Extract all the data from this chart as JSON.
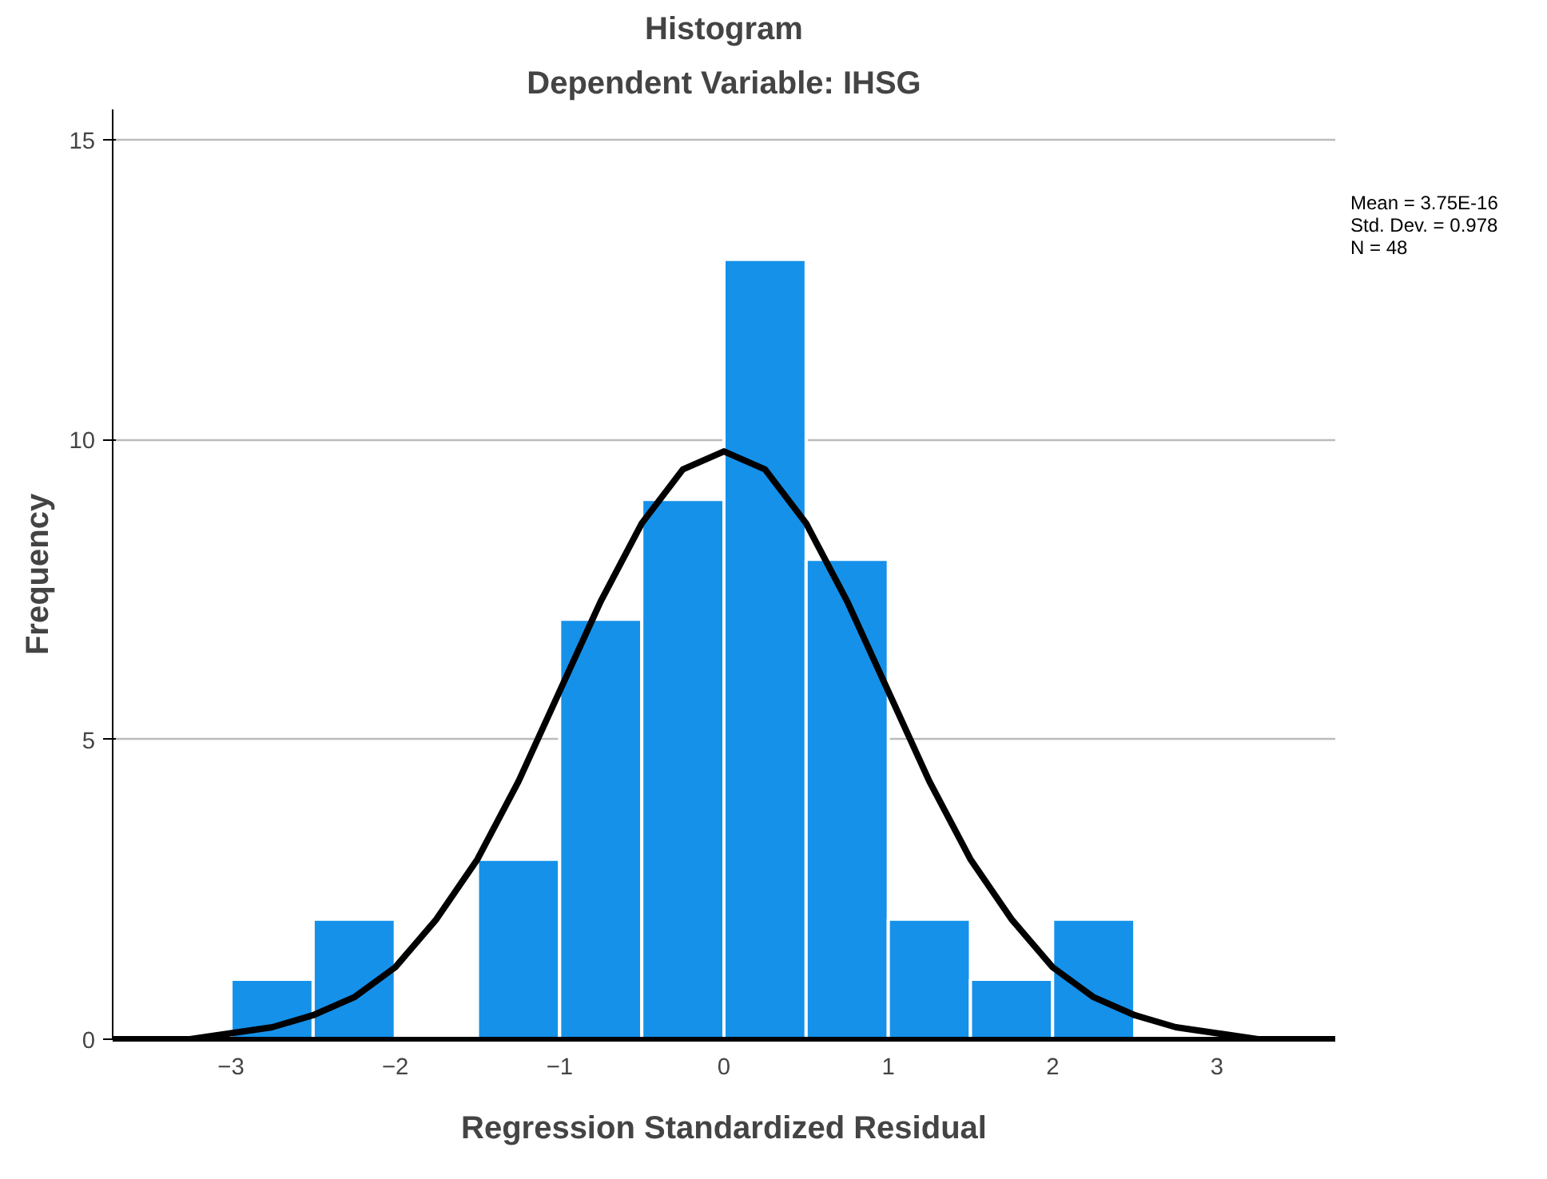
{
  "chart_data": {
    "type": "histogram",
    "title": "Histogram",
    "subtitle": "Dependent Variable: IHSG",
    "xlabel": "Regression Standardized Residual",
    "ylabel": "Frequency",
    "bins": [
      -3,
      -2.5,
      -2,
      -1.5,
      -1,
      -0.5,
      0,
      0.5,
      1,
      1.5,
      2,
      2.5
    ],
    "values": [
      1,
      2,
      0,
      3,
      7,
      9,
      13,
      8,
      2,
      1,
      2
    ],
    "color": "#1591ea",
    "series": [
      {
        "type": "line",
        "color": "#000000",
        "x": [
          -3.72,
          -3.5,
          -3.25,
          -3,
          -2.75,
          -2.5,
          -2.25,
          -2,
          -1.75,
          -1.5,
          -1.25,
          -1,
          -0.75,
          -0.5,
          -0.25,
          0,
          0.25,
          0.5,
          0.75,
          1,
          1.25,
          1.5,
          1.75,
          2,
          2.25,
          2.5,
          2.75,
          3,
          3.25,
          3.5,
          3.72
        ],
        "values": [
          0.0,
          0.0,
          0.0,
          0.1,
          0.2,
          0.4,
          0.7,
          1.2,
          2.0,
          3.0,
          4.3,
          5.8,
          7.3,
          8.6,
          9.5,
          9.8,
          9.5,
          8.6,
          7.3,
          5.8,
          4.3,
          3.0,
          2.0,
          1.2,
          0.7,
          0.4,
          0.2,
          0.1,
          0.0,
          0.0,
          0.0
        ]
      }
    ],
    "xlim": [
      -3.72,
      3.72
    ],
    "ylim": [
      0,
      15.5
    ],
    "xticks": [
      -3,
      -2,
      -1,
      0,
      1,
      2,
      3
    ],
    "yticks": [
      0,
      5,
      10,
      15
    ],
    "grid": "y",
    "annotations": [
      "Mean = 3.75E-16",
      "Std. Dev. = 0.978",
      "N = 48"
    ]
  }
}
